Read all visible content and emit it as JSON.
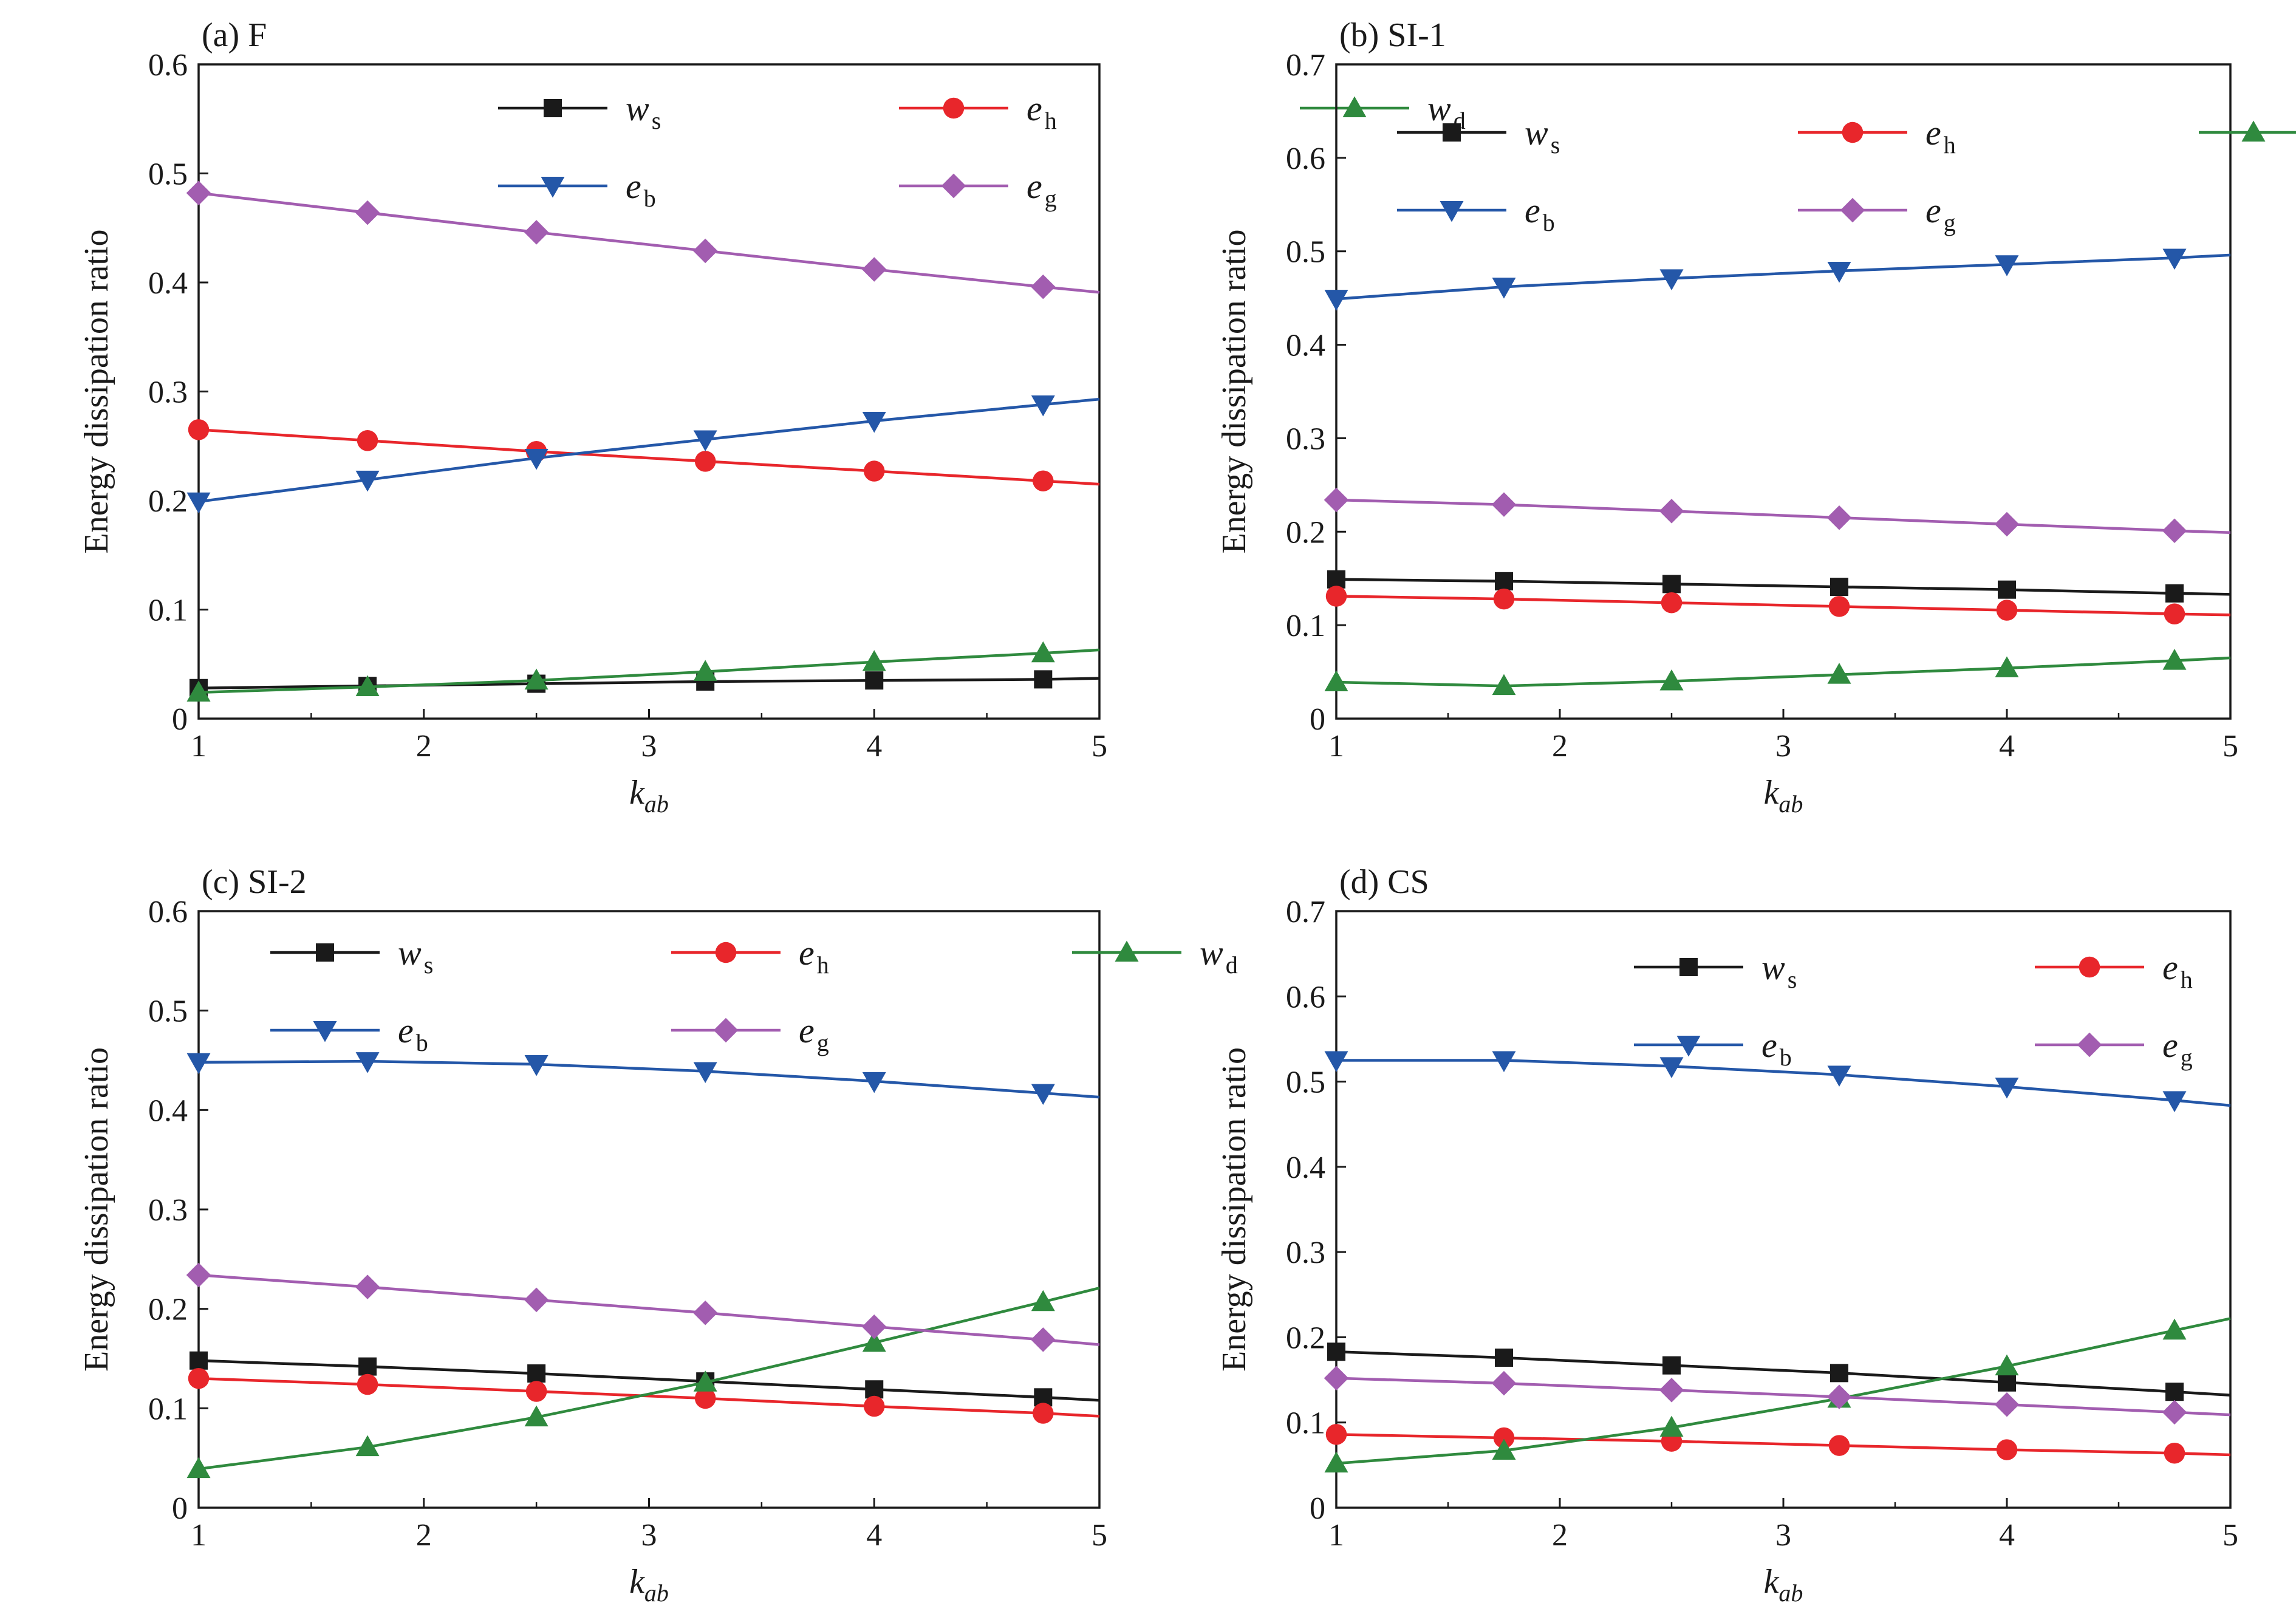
{
  "figure": {
    "ylabel": "Energy dissipation ratio",
    "xlabel_main": "k",
    "xlabel_sub": "ab"
  },
  "legend_items": [
    {
      "key": "ws",
      "main": "w",
      "sub": "s",
      "color": "#1a1a1a",
      "marker": "square"
    },
    {
      "key": "eh",
      "main": "e",
      "sub": "h",
      "color": "#e8262b",
      "marker": "circle"
    },
    {
      "key": "wd",
      "main": "w",
      "sub": "d",
      "color": "#2f8a3e",
      "marker": "triangle-up"
    },
    {
      "key": "eb",
      "main": "e",
      "sub": "b",
      "color": "#2457a8",
      "marker": "triangle-down"
    },
    {
      "key": "eg",
      "main": "e",
      "sub": "g",
      "color": "#a25db0",
      "marker": "diamond"
    }
  ],
  "chart_data": [
    {
      "panel": "a",
      "title": "(a) F",
      "type": "line",
      "xlabel": "k_ab",
      "ylabel": "Energy dissipation ratio",
      "xlim": [
        1,
        5
      ],
      "ylim": [
        0,
        0.6
      ],
      "x_ticks": [
        "1",
        "2",
        "3",
        "4",
        "5"
      ],
      "y_ticks": [
        "0",
        "0.1",
        "0.2",
        "0.3",
        "0.4",
        "0.5",
        "0.6"
      ],
      "legend_position": "top-right",
      "x": [
        1,
        1.75,
        2.5,
        3.25,
        4,
        4.75,
        5
      ],
      "series": [
        {
          "key": "ws",
          "values": [
            0.028,
            0.03,
            0.032,
            0.034,
            0.035,
            0.036,
            0.037
          ]
        },
        {
          "key": "eh",
          "values": [
            0.265,
            0.255,
            0.245,
            0.236,
            0.227,
            0.218,
            0.215
          ]
        },
        {
          "key": "wd",
          "values": [
            0.024,
            0.029,
            0.035,
            0.043,
            0.052,
            0.06,
            0.063
          ]
        },
        {
          "key": "eb",
          "values": [
            0.199,
            0.219,
            0.239,
            0.256,
            0.273,
            0.288,
            0.293
          ]
        },
        {
          "key": "eg",
          "values": [
            0.482,
            0.464,
            0.446,
            0.429,
            0.412,
            0.396,
            0.391
          ]
        }
      ]
    },
    {
      "panel": "b",
      "title": "(b) SI-1",
      "type": "line",
      "xlabel": "k_ab",
      "ylabel": "Energy dissipation ratio",
      "xlim": [
        1,
        5
      ],
      "ylim": [
        0,
        0.7
      ],
      "x_ticks": [
        "1",
        "2",
        "3",
        "4",
        "5"
      ],
      "y_ticks": [
        "0",
        "0.1",
        "0.2",
        "0.3",
        "0.4",
        "0.5",
        "0.6",
        "0.7"
      ],
      "legend_position": "top-left",
      "x": [
        1,
        1.75,
        2.5,
        3.25,
        4,
        4.75,
        5
      ],
      "series": [
        {
          "key": "ws",
          "values": [
            0.149,
            0.147,
            0.144,
            0.141,
            0.138,
            0.134,
            0.133
          ]
        },
        {
          "key": "eh",
          "values": [
            0.131,
            0.128,
            0.124,
            0.12,
            0.116,
            0.112,
            0.111
          ]
        },
        {
          "key": "wd",
          "values": [
            0.039,
            0.035,
            0.04,
            0.047,
            0.054,
            0.062,
            0.065
          ]
        },
        {
          "key": "eb",
          "values": [
            0.449,
            0.462,
            0.471,
            0.479,
            0.486,
            0.493,
            0.496
          ]
        },
        {
          "key": "eg",
          "values": [
            0.234,
            0.229,
            0.222,
            0.215,
            0.208,
            0.201,
            0.199
          ]
        }
      ]
    },
    {
      "panel": "c",
      "title": "(c) SI-2",
      "type": "line",
      "xlabel": "k_ab",
      "ylabel": "Energy dissipation ratio",
      "xlim": [
        1,
        5
      ],
      "ylim": [
        0,
        0.6
      ],
      "x_ticks": [
        "1",
        "2",
        "3",
        "4",
        "5"
      ],
      "y_ticks": [
        "0",
        "0.1",
        "0.2",
        "0.3",
        "0.4",
        "0.5",
        "0.6"
      ],
      "legend_position": "top-left",
      "x": [
        1,
        1.75,
        2.5,
        3.25,
        4,
        4.75,
        5
      ],
      "series": [
        {
          "key": "ws",
          "values": [
            0.148,
            0.142,
            0.135,
            0.127,
            0.119,
            0.111,
            0.108
          ]
        },
        {
          "key": "eh",
          "values": [
            0.13,
            0.124,
            0.117,
            0.11,
            0.102,
            0.095,
            0.092
          ]
        },
        {
          "key": "wd",
          "values": [
            0.039,
            0.061,
            0.091,
            0.126,
            0.166,
            0.207,
            0.221
          ]
        },
        {
          "key": "eb",
          "values": [
            0.448,
            0.449,
            0.446,
            0.439,
            0.429,
            0.417,
            0.413
          ]
        },
        {
          "key": "eg",
          "values": [
            0.234,
            0.222,
            0.209,
            0.196,
            0.182,
            0.169,
            0.164
          ]
        }
      ]
    },
    {
      "panel": "d",
      "title": "(d) CS",
      "type": "line",
      "xlabel": "k_ab",
      "ylabel": "Energy dissipation ratio",
      "xlim": [
        1,
        5
      ],
      "ylim": [
        0,
        0.7
      ],
      "x_ticks": [
        "1",
        "2",
        "3",
        "4",
        "5"
      ],
      "y_ticks": [
        "0",
        "0.1",
        "0.2",
        "0.3",
        "0.4",
        "0.5",
        "0.6",
        "0.7"
      ],
      "legend_position": "top-right",
      "x": [
        1,
        1.75,
        2.5,
        3.25,
        4,
        4.75,
        5
      ],
      "series": [
        {
          "key": "ws",
          "values": [
            0.183,
            0.176,
            0.167,
            0.158,
            0.147,
            0.136,
            0.132
          ]
        },
        {
          "key": "eh",
          "values": [
            0.086,
            0.082,
            0.078,
            0.073,
            0.068,
            0.064,
            0.062
          ]
        },
        {
          "key": "wd",
          "values": [
            0.052,
            0.067,
            0.094,
            0.128,
            0.166,
            0.208,
            0.222
          ]
        },
        {
          "key": "eb",
          "values": [
            0.525,
            0.525,
            0.518,
            0.508,
            0.494,
            0.478,
            0.472
          ]
        },
        {
          "key": "eg",
          "values": [
            0.152,
            0.146,
            0.138,
            0.13,
            0.121,
            0.112,
            0.109
          ]
        }
      ]
    }
  ]
}
